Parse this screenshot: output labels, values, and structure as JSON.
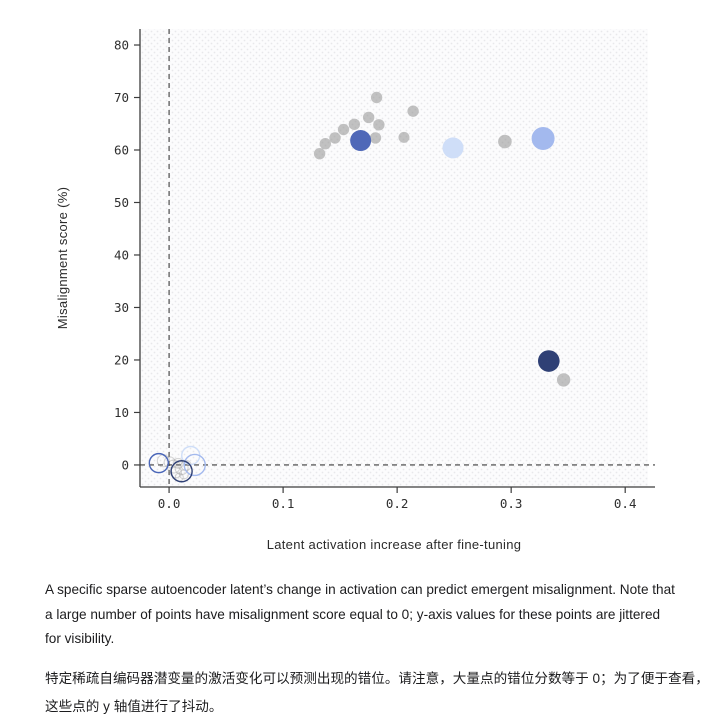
{
  "captions": {
    "english_lines": [
      "A specific sparse autoencoder latent’s change in activation can predict emergent misalignment. Note that",
      "a large number of points have misalignment score equal to 0; y-axis values for these points are jittered",
      "for visibility."
    ],
    "chinese_lines": [
      "特定稀疏自编码器潜变量的激活变化可以预测出现的错位。请注意，大量点的错位分数等于 0；为了便于查看，",
      "这些点的 y 轴值进行了抖动。"
    ]
  },
  "chart_data": {
    "type": "scatter",
    "title": "",
    "xlabel": "Latent activation increase after fine-tuning",
    "ylabel": "Misalignment score (%)",
    "xlim": [
      -0.0255,
      0.42
    ],
    "ylim": [
      -4.2,
      83.05
    ],
    "x_ticks": [
      0.0,
      0.1,
      0.2,
      0.3,
      0.4
    ],
    "x_tick_labels": [
      "0.0",
      "0.1",
      "0.2",
      "0.3",
      "0.4"
    ],
    "y_ticks": [
      0,
      10,
      20,
      30,
      40,
      50,
      60,
      70,
      80
    ],
    "y_tick_labels": [
      "0",
      "10",
      "20",
      "30",
      "40",
      "50",
      "60",
      "70",
      "80"
    ],
    "grid": false,
    "plot_background": "fine-dot-pattern",
    "legend": "none",
    "reference_lines": {
      "x_dashed_at": 0.0,
      "y_dashed_at": 0.0
    },
    "colors": {
      "gray_marker": "#8f8f8f",
      "blue": "#4f68b8",
      "navy": "#2f4075",
      "periwinkle": "#a3b9ee",
      "light_blue": "#cfdef8",
      "axis": "#3c3c3c",
      "pattern_dot": "#e8e8eb"
    },
    "series": [
      {
        "name": "gray-filled",
        "marker": "filled",
        "color": "#8f8f8f",
        "opacity": 0.55,
        "points": [
          {
            "x": 0.132,
            "y": 59.3,
            "r": 5.7
          },
          {
            "x": 0.137,
            "y": 61.2,
            "r": 5.7
          },
          {
            "x": 0.1455,
            "y": 62.3,
            "r": 5.7
          },
          {
            "x": 0.153,
            "y": 63.9,
            "r": 5.7
          },
          {
            "x": 0.1625,
            "y": 64.9,
            "r": 5.7
          },
          {
            "x": 0.175,
            "y": 66.2,
            "r": 5.7
          },
          {
            "x": 0.184,
            "y": 64.8,
            "r": 5.7
          },
          {
            "x": 0.181,
            "y": 62.3,
            "r": 5.7
          },
          {
            "x": 0.182,
            "y": 70.0,
            "r": 5.7
          },
          {
            "x": 0.214,
            "y": 67.4,
            "r": 5.7
          },
          {
            "x": 0.206,
            "y": 62.4,
            "r": 5.5
          },
          {
            "x": 0.2945,
            "y": 61.6,
            "r": 6.8
          },
          {
            "x": 0.346,
            "y": 16.2,
            "r": 6.7
          }
        ]
      },
      {
        "name": "gray-open-jittered-zero",
        "marker": "open",
        "color": "#9a9a9a",
        "opacity": 0.4,
        "stroke_width": 1.1,
        "points": [
          {
            "x": 0.0005,
            "y": 0.5,
            "r": 5.5
          },
          {
            "x": 0.004,
            "y": -0.3,
            "r": 6.5
          },
          {
            "x": 0.008,
            "y": 0.3,
            "r": 5.0
          },
          {
            "x": 0.006,
            "y": -1.4,
            "r": 5.5
          },
          {
            "x": 0.011,
            "y": -0.6,
            "r": 6.5
          },
          {
            "x": 0.013,
            "y": -1.8,
            "r": 4.5
          },
          {
            "x": 0.009,
            "y": -2.3,
            "r": 4.0
          },
          {
            "x": 0.015,
            "y": -0.1,
            "r": 5.0
          },
          {
            "x": -0.005,
            "y": 0.8,
            "r": 6.0
          }
        ]
      },
      {
        "name": "blue-filled",
        "marker": "filled",
        "points": [
          {
            "x": 0.168,
            "y": 61.8,
            "r": 10.5,
            "color": "#4f68b8"
          },
          {
            "x": 0.249,
            "y": 60.4,
            "r": 10.5,
            "color": "#cfdef8"
          },
          {
            "x": 0.328,
            "y": 62.2,
            "r": 11.5,
            "color": "#a3b9ee"
          },
          {
            "x": 0.333,
            "y": 19.8,
            "r": 10.8,
            "color": "#2f4075"
          }
        ]
      },
      {
        "name": "colored-open-jittered-zero",
        "marker": "open",
        "stroke_width": 1.4,
        "points": [
          {
            "x": 0.019,
            "y": 1.8,
            "r": 9.0,
            "color": "#cfdef8"
          },
          {
            "x": -0.009,
            "y": 0.35,
            "r": 9.5,
            "color": "#4a66b8"
          },
          {
            "x": 0.0225,
            "y": 0.0,
            "r": 10.5,
            "color": "#a3b9ee"
          },
          {
            "x": 0.011,
            "y": -1.2,
            "r": 10.5,
            "color": "#2f4075"
          }
        ]
      }
    ]
  }
}
